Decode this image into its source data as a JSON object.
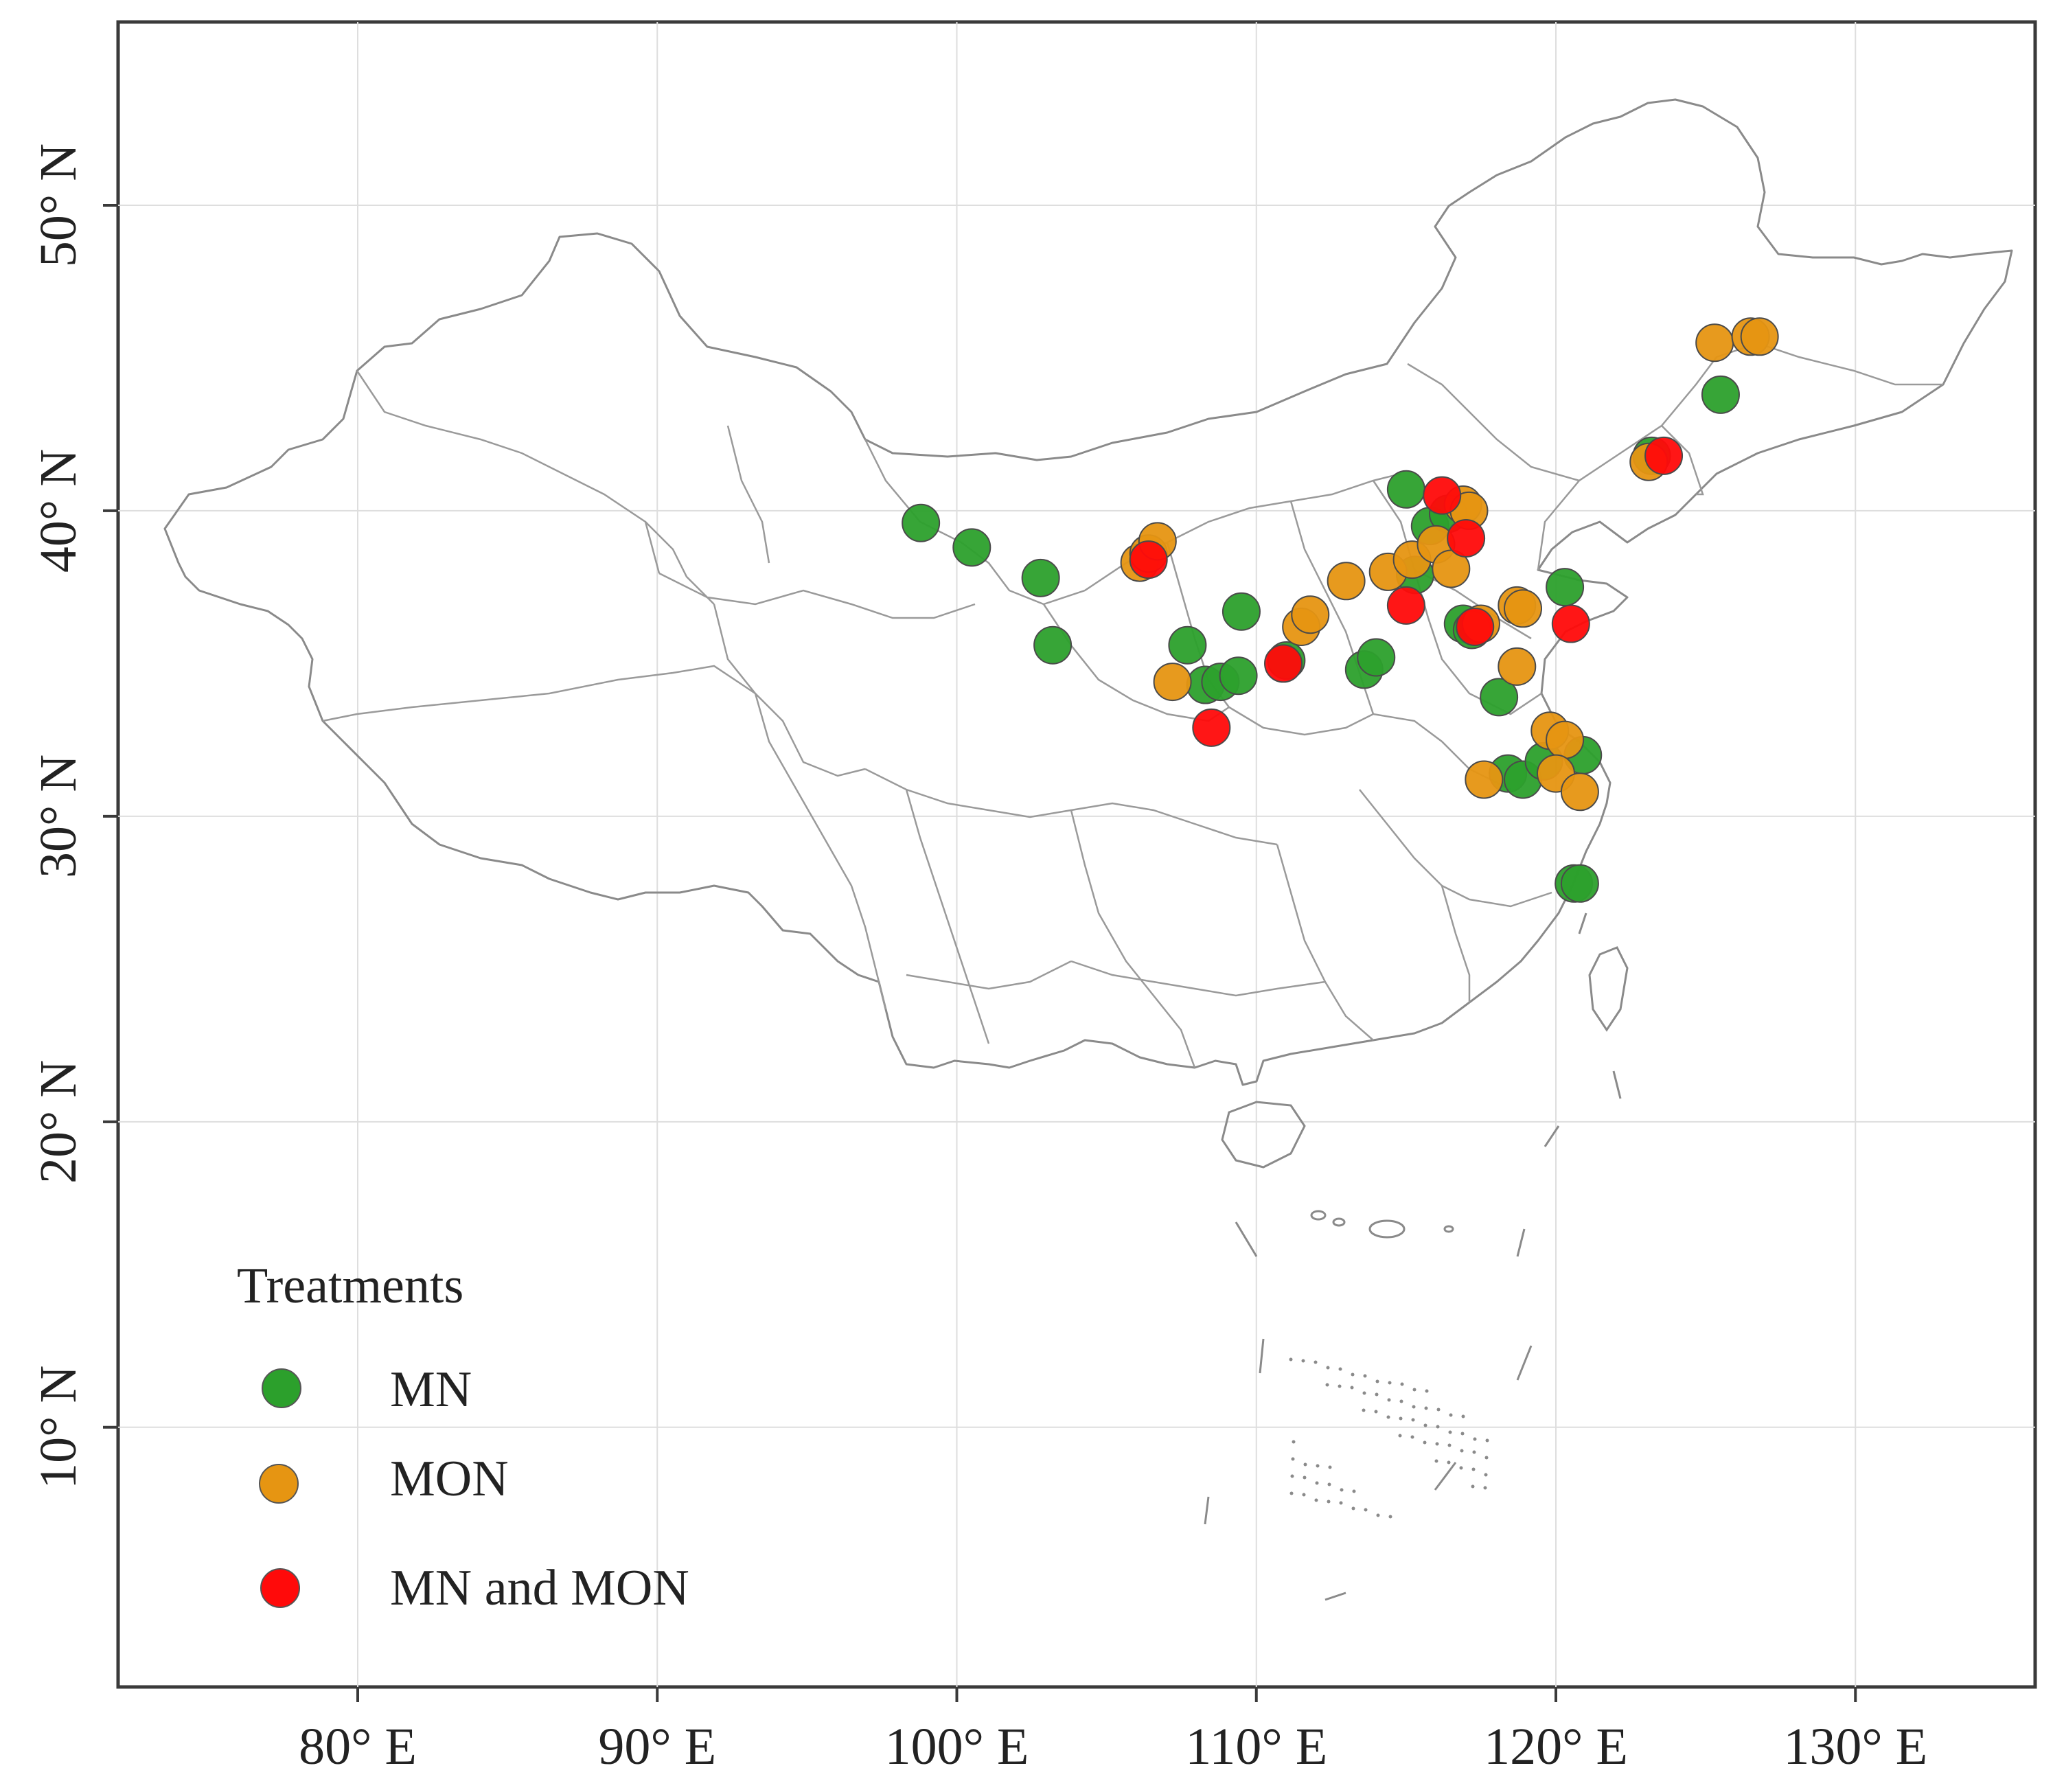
{
  "chart_data": {
    "type": "scatter",
    "title": "",
    "x_axis": {
      "range": [
        72,
        136
      ],
      "ticks": [
        80,
        90,
        100,
        110,
        120,
        130
      ],
      "tick_labels": [
        "80° E",
        "90° E",
        "100° E",
        "110° E",
        "120° E",
        "130° E"
      ]
    },
    "y_axis": {
      "range": [
        1.5,
        56
      ],
      "ticks": [
        10,
        20,
        30,
        40,
        50
      ],
      "tick_labels": [
        "10° N",
        "20° N",
        "30° N",
        "40° N",
        "50° N"
      ]
    },
    "grid": true,
    "legend": {
      "title": "Treatments",
      "position": "bottom-left",
      "entries": [
        {
          "label": "MN",
          "color": "#2ca02c"
        },
        {
          "label": "MON",
          "color": "#e69512"
        },
        {
          "label": "MN and MON",
          "color": "#ff0a0a"
        }
      ]
    },
    "series": [
      {
        "name": "MN",
        "color": "#2ca02c",
        "points": [
          [
            98.8,
            39.6
          ],
          [
            100.5,
            38.8
          ],
          [
            102.8,
            37.8
          ],
          [
            103.2,
            35.6
          ],
          [
            107.7,
            35.6
          ],
          [
            108.3,
            34.3
          ],
          [
            108.8,
            34.4
          ],
          [
            109.5,
            36.7
          ],
          [
            109.4,
            34.6
          ],
          [
            111.0,
            35.1
          ],
          [
            113.6,
            34.8
          ],
          [
            114.0,
            35.2
          ],
          [
            115.0,
            40.7
          ],
          [
            115.3,
            37.9
          ],
          [
            115.8,
            39.5
          ],
          [
            116.4,
            39.9
          ],
          [
            116.9,
            36.3
          ],
          [
            117.2,
            36.1
          ],
          [
            118.1,
            33.9
          ],
          [
            118.4,
            31.4
          ],
          [
            118.9,
            31.2
          ],
          [
            119.6,
            31.8
          ],
          [
            120.3,
            37.5
          ],
          [
            120.9,
            32.0
          ],
          [
            120.6,
            27.8
          ],
          [
            120.8,
            27.8
          ],
          [
            123.2,
            41.8
          ],
          [
            125.5,
            43.8
          ]
        ]
      },
      {
        "name": "MON",
        "color": "#e69512",
        "points": [
          [
            106.1,
            38.3
          ],
          [
            106.4,
            38.6
          ],
          [
            106.7,
            39.0
          ],
          [
            107.2,
            34.4
          ],
          [
            111.5,
            36.2
          ],
          [
            111.8,
            36.6
          ],
          [
            113.0,
            37.7
          ],
          [
            114.4,
            38.0
          ],
          [
            115.2,
            38.4
          ],
          [
            116.0,
            38.9
          ],
          [
            116.5,
            38.1
          ],
          [
            116.9,
            40.2
          ],
          [
            117.1,
            40.0
          ],
          [
            117.5,
            36.3
          ],
          [
            117.6,
            31.2
          ],
          [
            118.7,
            36.9
          ],
          [
            118.9,
            36.8
          ],
          [
            118.7,
            34.9
          ],
          [
            119.8,
            32.8
          ],
          [
            120.3,
            32.5
          ],
          [
            120.0,
            31.4
          ],
          [
            120.8,
            30.8
          ],
          [
            123.1,
            41.6
          ],
          [
            125.3,
            45.5
          ],
          [
            126.5,
            45.7
          ],
          [
            126.8,
            45.7
          ]
        ]
      },
      {
        "name": "MN and MON",
        "color": "#ff0a0a",
        "points": [
          [
            106.4,
            38.4
          ],
          [
            108.5,
            32.9
          ],
          [
            110.9,
            35.0
          ],
          [
            115.0,
            36.9
          ],
          [
            116.2,
            40.5
          ],
          [
            117.0,
            39.1
          ],
          [
            117.3,
            36.2
          ],
          [
            120.5,
            36.3
          ],
          [
            123.6,
            41.8
          ]
        ]
      }
    ]
  }
}
